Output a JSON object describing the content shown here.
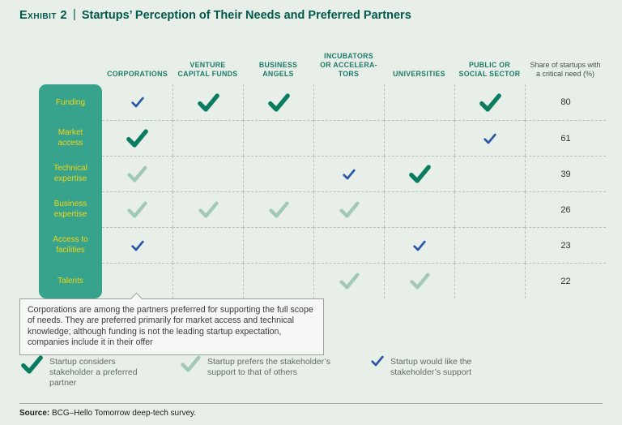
{
  "header": {
    "exhibit_label": "Exhibit 2",
    "separator": "|",
    "title": "Startups’ Perception of Their Needs and Preferred Partners"
  },
  "chart_data": {
    "type": "table",
    "title": "Startups’ Perception of Their Needs and Preferred Partners",
    "columns": [
      "CORPORATIONS",
      "VENTURE CAPITAL FUNDS",
      "BUSINESS ANGELS",
      "INCUBATORS OR ACCELERA-TORS",
      "UNIVERSITIES",
      "PUBLIC OR SOCIAL SECTOR"
    ],
    "share_header": "Share of startups with a critical need (%)",
    "cell_types": {
      "preferred": "Startup considers stakeholder a preferred partner",
      "prefers": "Startup prefers the stakeholder’s support to that of others",
      "would_like": "Startup would like the stakeholder’s support"
    },
    "rows": [
      {
        "label": "Funding",
        "share": 80,
        "cells": [
          "would_like",
          "preferred",
          "preferred",
          null,
          null,
          "preferred"
        ]
      },
      {
        "label": "Market access",
        "share": 61,
        "cells": [
          "preferred",
          null,
          null,
          null,
          null,
          "would_like"
        ]
      },
      {
        "label": "Technical expertise",
        "share": 39,
        "cells": [
          "prefers",
          null,
          null,
          "would_like",
          "preferred",
          null
        ]
      },
      {
        "label": "Business expertise",
        "share": 26,
        "cells": [
          "prefers",
          "prefers",
          "prefers",
          "prefers",
          null,
          null
        ]
      },
      {
        "label": "Access to facilities",
        "share": 23,
        "cells": [
          "would_like",
          null,
          null,
          null,
          "would_like",
          null
        ]
      },
      {
        "label": "Talents",
        "share": 22,
        "cells": [
          null,
          null,
          null,
          "prefers",
          "prefers",
          null
        ]
      }
    ]
  },
  "callout": {
    "text": "Corporations are among the partners preferred for supporting the full scope of needs. They are preferred primarily for market access and technical knowledge; although funding is not the leading startup expectation, companies include it in their offer"
  },
  "legend": [
    {
      "type": "preferred",
      "label": "Startup considers stakeholder a preferred partner"
    },
    {
      "type": "prefers",
      "label": "Startup prefers the stakeholder’s support to that of others"
    },
    {
      "type": "would_like",
      "label": "Startup would like the stakeholder’s support"
    }
  ],
  "source": {
    "prefix": "Source:",
    "text": " BCG–Hello Tomorrow deep-tech survey."
  },
  "colors": {
    "background": "#e8efe9",
    "title": "#00584a",
    "column_header": "#1e7a68",
    "share_header": "#42504a",
    "row_band": "#37a38c",
    "row_label": "#f3d515",
    "check_preferred": "#0b7c60",
    "check_prefers": "#a2c9b6",
    "check_would_like": "#2a57a5",
    "grid_dash": "#b4c4bb",
    "share_text": "#2e2e2e",
    "callout_text": "#3b3b3b",
    "legend_text": "#5f6b64"
  }
}
